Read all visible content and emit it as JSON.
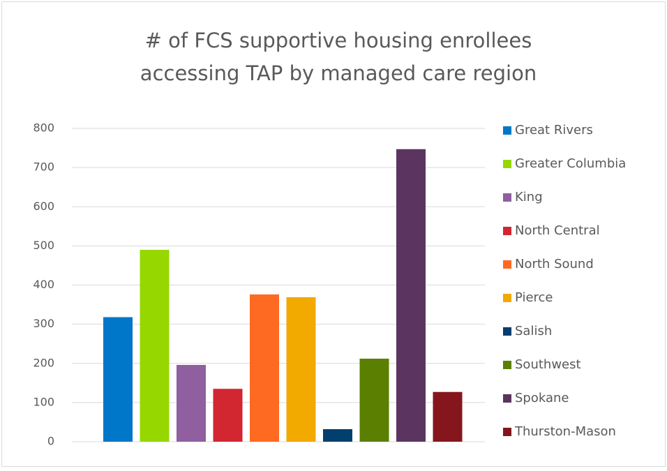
{
  "chart_data": {
    "type": "bar",
    "title": [
      "# of FCS supportive housing enrollees",
      "accessing TAP by managed care region"
    ],
    "categories": [
      null
    ],
    "series": [
      {
        "name": "Great Rivers",
        "color": "#0077c8",
        "values": [
          318
        ]
      },
      {
        "name": "Greater Columbia",
        "color": "#97d700",
        "values": [
          490
        ]
      },
      {
        "name": "King",
        "color": "#8f5fa0",
        "values": [
          196
        ]
      },
      {
        "name": "North Central",
        "color": "#d22630",
        "values": [
          135
        ]
      },
      {
        "name": "North Sound",
        "color": "#ff6a22",
        "values": [
          376
        ]
      },
      {
        "name": "Pierce",
        "color": "#f2a900",
        "values": [
          369
        ]
      },
      {
        "name": "Salish",
        "color": "#003f6e",
        "values": [
          32
        ]
      },
      {
        "name": "Southwest",
        "color": "#5b7f00",
        "values": [
          212
        ]
      },
      {
        "name": "Spokane",
        "color": "#5b3560",
        "values": [
          747
        ]
      },
      {
        "name": "Thurston-Mason",
        "color": "#85161d",
        "values": [
          127
        ]
      }
    ],
    "ylim": [
      0,
      800
    ],
    "yticks": [
      0,
      100,
      200,
      300,
      400,
      500,
      600,
      700,
      800
    ],
    "grid": true,
    "legend": "right"
  }
}
